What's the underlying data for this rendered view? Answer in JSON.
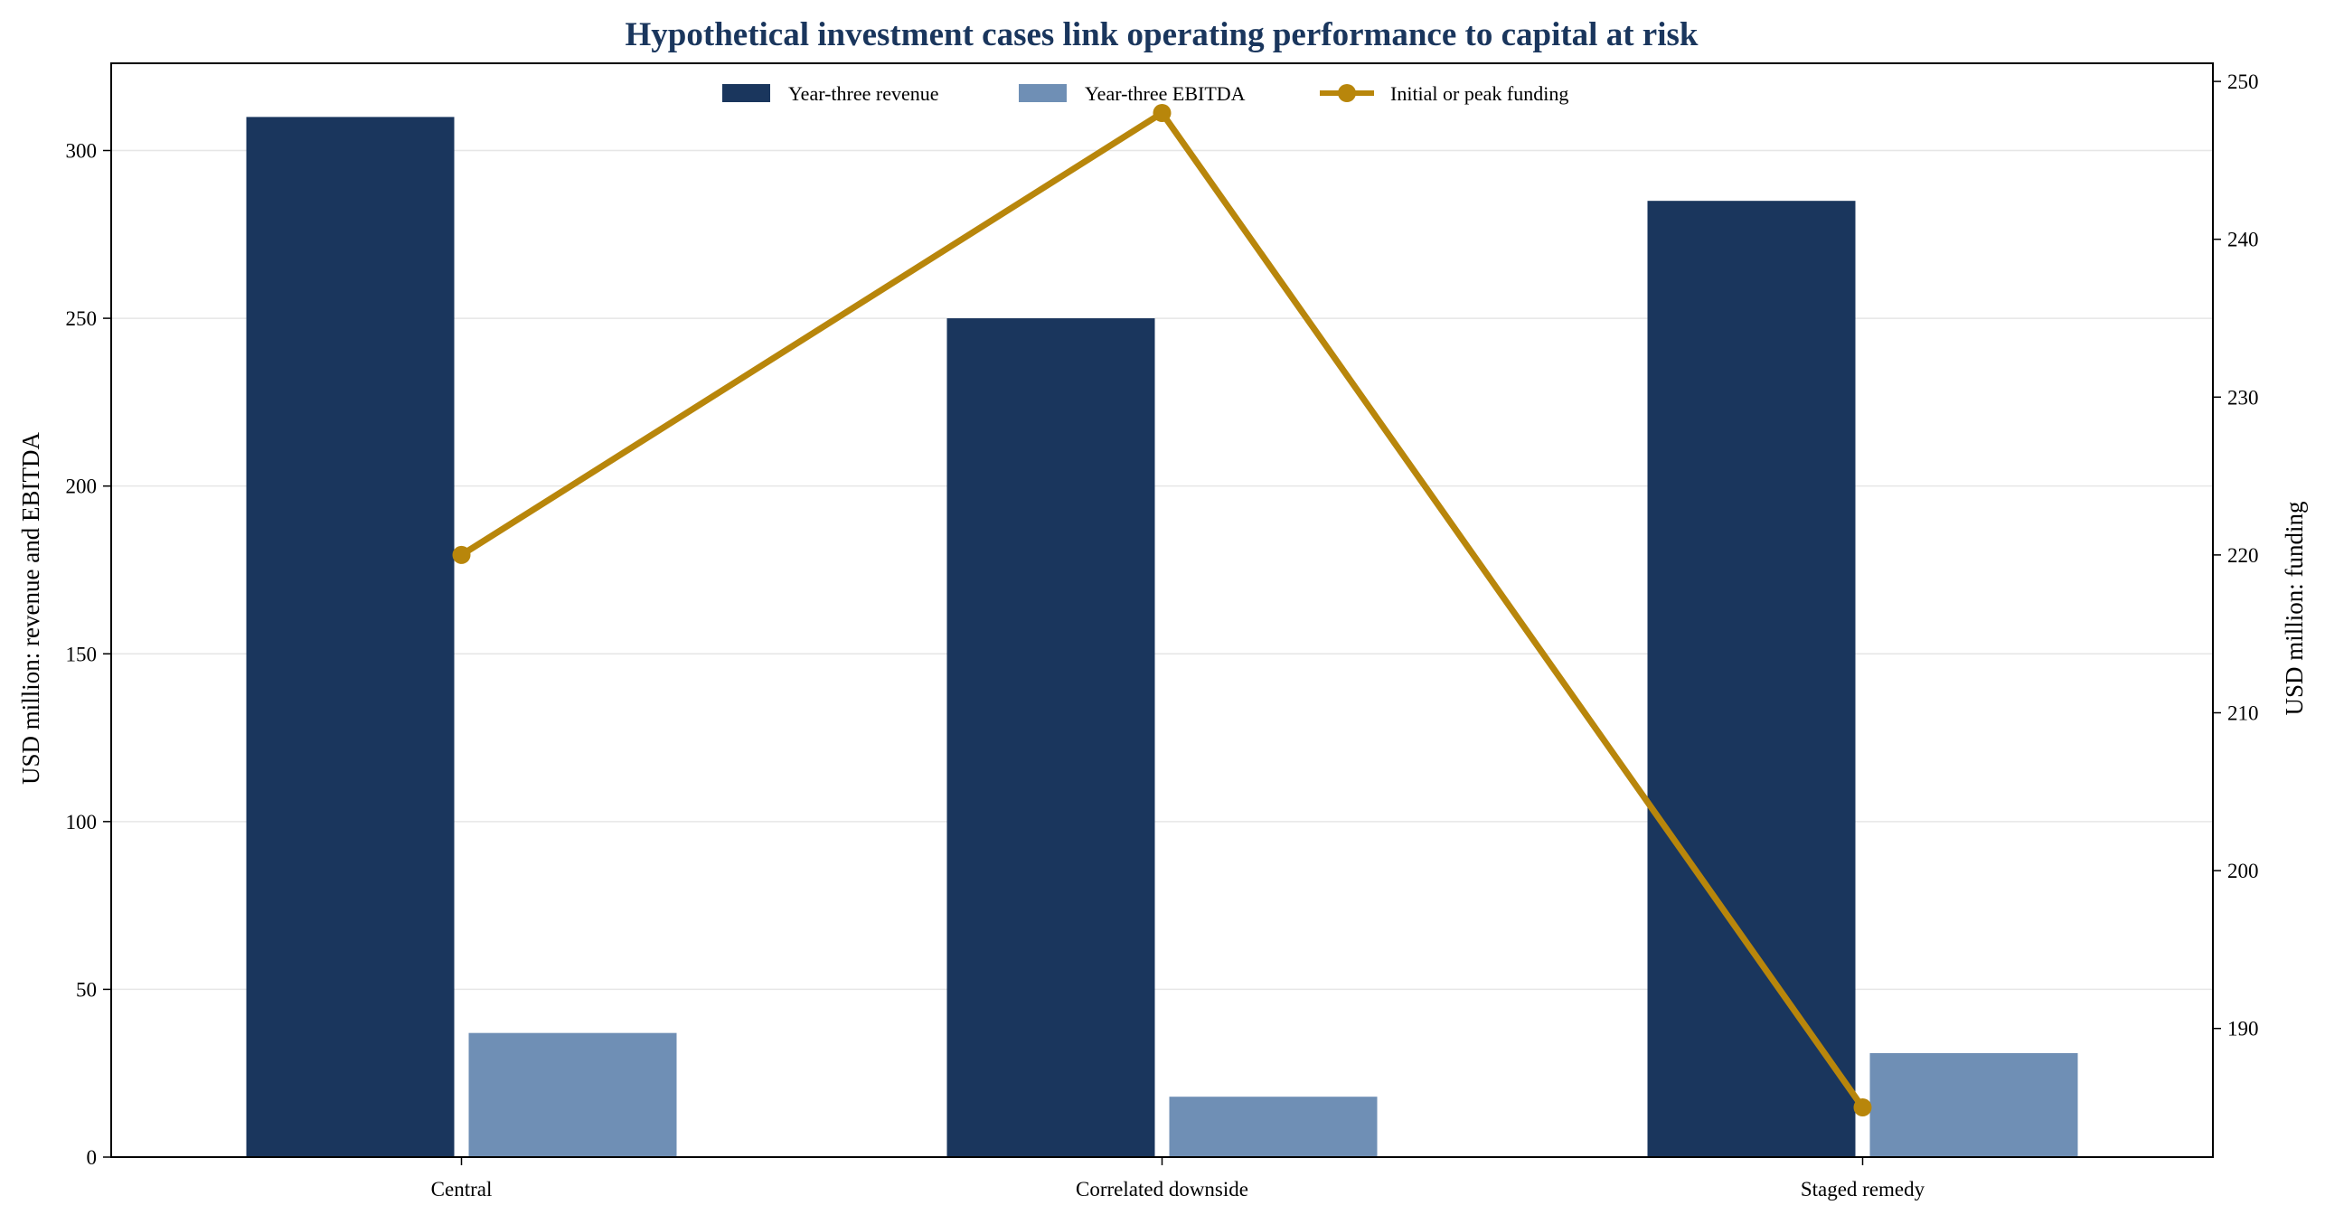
{
  "chart_data": {
    "type": "bar",
    "title": "Hypothetical investment cases link operating performance to capital at risk",
    "categories": [
      "Central",
      "Correlated downside",
      "Staged remedy"
    ],
    "series": [
      {
        "name": "Year-three revenue",
        "type": "bar",
        "axis": "left",
        "values": [
          310,
          250,
          285
        ],
        "color": "#1a365d"
      },
      {
        "name": "Year-three EBITDA",
        "type": "bar",
        "axis": "left",
        "values": [
          37,
          18,
          31
        ],
        "color": "#6f8fb5"
      },
      {
        "name": "Initial or peak funding",
        "type": "line",
        "axis": "right",
        "values": [
          220,
          248,
          185
        ],
        "color": "#b8860b"
      }
    ],
    "ylabel": "USD million: revenue and EBITDA",
    "ylim": [
      0,
      326
    ],
    "yticks": [
      "0",
      "50",
      "100",
      "150",
      "200",
      "250",
      "300"
    ],
    "y2label": "USD million: funding",
    "y2lim": [
      181.85,
      251.15
    ],
    "y2ticks": [
      "190",
      "200",
      "210",
      "220",
      "230",
      "240",
      "250"
    ],
    "grid": true,
    "legend_position": "top-center",
    "title_color": "#1a365d"
  }
}
